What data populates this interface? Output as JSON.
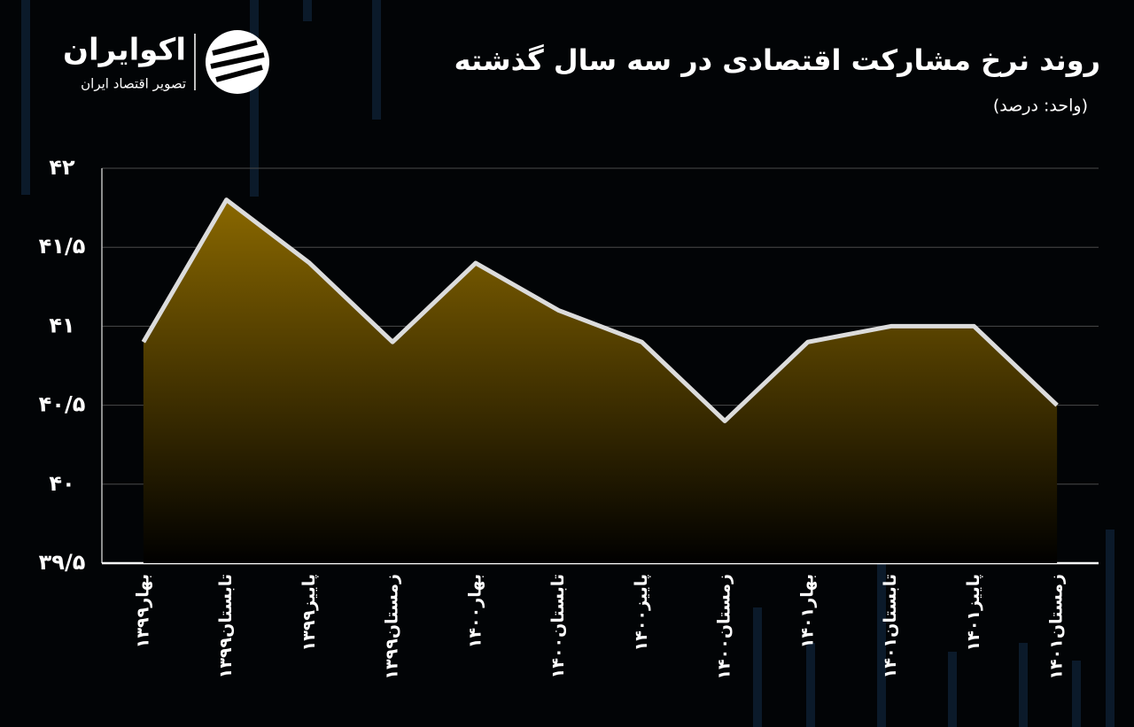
{
  "branding": {
    "name": "اکوایران",
    "tagline": "تصویر اقتصاد ایران"
  },
  "chart_data": {
    "type": "area",
    "title": "روند نرخ مشارکت اقتصادی در سه سال گذشته",
    "subtitle": "(واحد: درصد)",
    "categories": [
      "بهار۱۳۹۹",
      "تابستان۱۳۹۹",
      "پاییز۱۳۹۹",
      "زمستان۱۳۹۹",
      "بهار۱۴۰۰",
      "تابستان۱۴۰۰",
      "پاییز۱۴۰۰",
      "زمستان۱۴۰۰",
      "بهار۱۴۰۱",
      "تابستان۱۴۰۱",
      "پاییز۱۴۰۱",
      "زمستان۱۴۰۱"
    ],
    "values": [
      40.9,
      41.8,
      41.4,
      40.9,
      41.4,
      41.1,
      40.9,
      40.4,
      40.9,
      41.0,
      41.0,
      40.5
    ],
    "color": "#dcdcdc",
    "fill_color": "#8a6800",
    "ylim": [
      39.5,
      42
    ],
    "yticks": [
      {
        "value": 39.5,
        "label": "۳۹/۵"
      },
      {
        "value": 40,
        "label": "۴۰"
      },
      {
        "value": 40.5,
        "label": "۴۰/۵"
      },
      {
        "value": 41,
        "label": "۴۱"
      },
      {
        "value": 41.5,
        "label": "۴۱/۵"
      },
      {
        "value": 42,
        "label": "۴۲"
      }
    ],
    "grid": true
  }
}
